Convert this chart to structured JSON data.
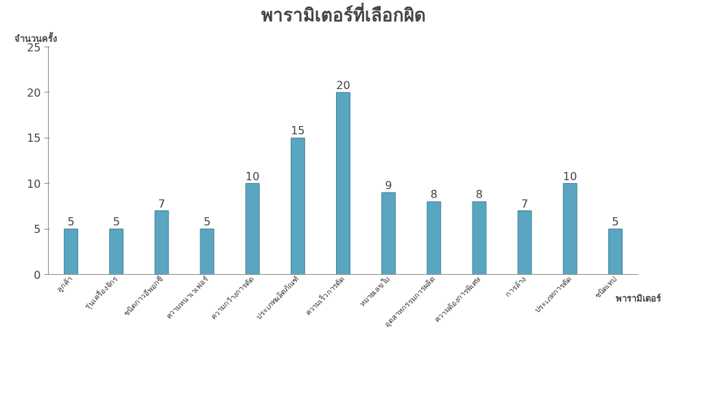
{
  "chart_data": {
    "type": "bar",
    "title": "พารามิเตอร์ที่เลือกผิด",
    "xlabel": "พารามิเตอร์",
    "ylabel": "จำนวนครั้ง",
    "categories": [
      "ลูกค้า",
      "รุ่นเครื่องจักร",
      "ชนิดกาวอีพอกซี่",
      "ความหนาเวเฟอร์",
      "ความกว้างการตัด",
      "ประเภทผลิตภัณฑ์",
      "ความเร็วการตัด",
      "หมายเลขใบ",
      "อุตสาหกรรมการผลิต",
      "ความต้องการพิเศษ",
      "การล้าง",
      "ประเภทการตัด",
      "ชนิดเทป"
    ],
    "values": [
      5,
      5,
      7,
      5,
      10,
      15,
      20,
      9,
      8,
      8,
      7,
      10,
      5
    ],
    "color": "#5aa6c0",
    "ylim": [
      0,
      25
    ],
    "yticks": [
      0,
      5,
      10,
      15,
      20,
      25
    ],
    "grid": false,
    "data_labels": true
  }
}
